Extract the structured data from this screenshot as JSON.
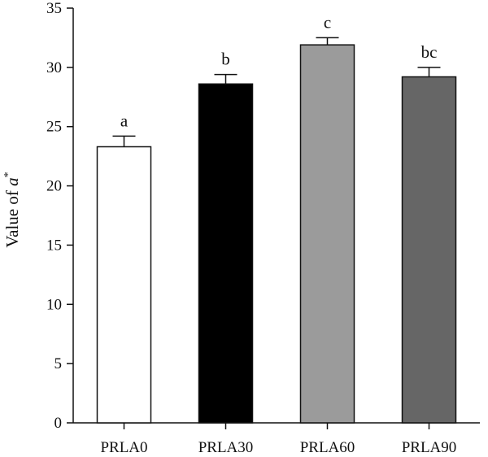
{
  "chart_data": {
    "type": "bar",
    "title": "",
    "xlabel": "",
    "ylabel": {
      "prefix": "Value of ",
      "symbol": "a",
      "superscript": "*"
    },
    "ylim": [
      0,
      35
    ],
    "yticks": [
      0,
      5,
      10,
      15,
      20,
      25,
      30,
      35
    ],
    "categories": [
      "PRLA0",
      "PRLA30",
      "PRLA60",
      "PRLA90"
    ],
    "values": [
      23.3,
      28.6,
      31.9,
      29.2
    ],
    "errors": [
      0.9,
      0.8,
      0.6,
      0.8
    ],
    "significance": [
      "a",
      "b",
      "c",
      "bc"
    ],
    "colors": [
      "#ffffff",
      "#000000",
      "#9b9b9b",
      "#666666"
    ],
    "grid": false,
    "legend": "none"
  }
}
